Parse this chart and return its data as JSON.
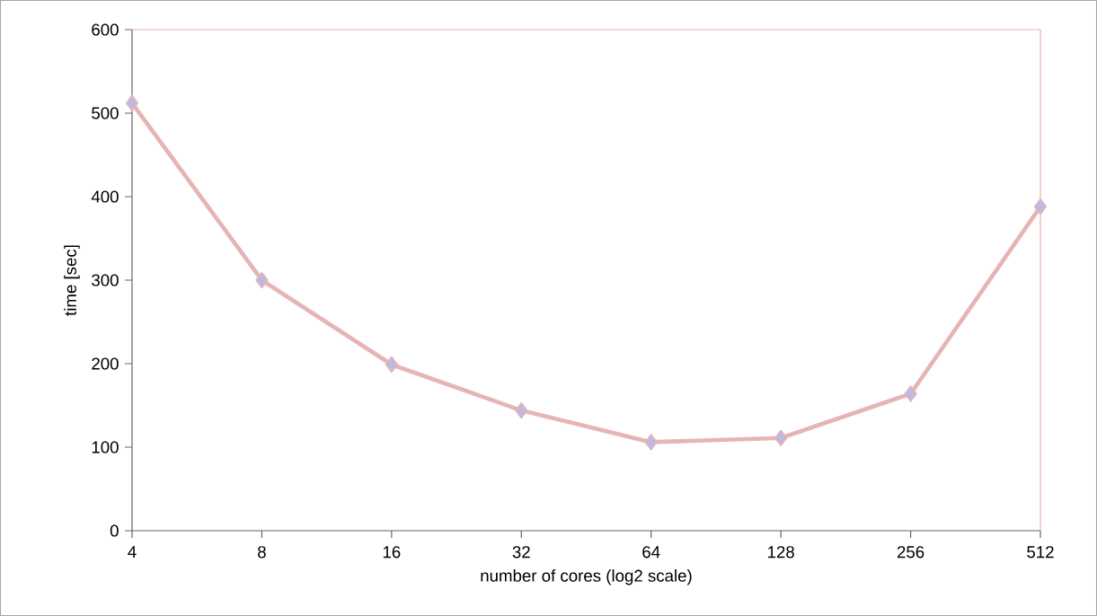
{
  "chart_data": {
    "type": "line",
    "xlabel": "number of cores (log2 scale)",
    "ylabel": "time [sec]",
    "categories": [
      "4",
      "8",
      "16",
      "32",
      "64",
      "128",
      "256",
      "512"
    ],
    "series": [
      {
        "color": "#e6b4b4",
        "values": [
          512,
          300,
          199,
          144,
          106,
          111,
          164,
          388
        ]
      }
    ],
    "ylim": [
      0,
      600
    ],
    "yticks": [
      0,
      100,
      200,
      300,
      400,
      500,
      600
    ],
    "grid": false,
    "marker": "diamond",
    "line_style": "solid"
  }
}
